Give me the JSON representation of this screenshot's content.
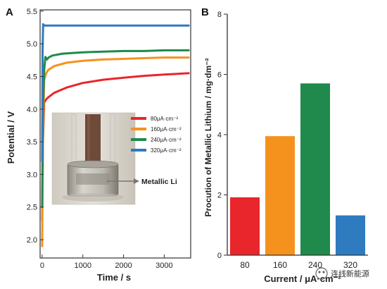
{
  "chart_data": [
    {
      "panel": "A",
      "type": "line",
      "xlabel": "Time / s",
      "ylabel": "Potential / V",
      "xlim": [
        -50,
        3650
      ],
      "ylim": [
        1.72,
        5.52
      ],
      "xticks": [
        0,
        1000,
        2000,
        3000
      ],
      "yticks": [
        2.0,
        2.5,
        3.0,
        3.5,
        4.0,
        4.5,
        5.0,
        5.5
      ],
      "ytick_labels": [
        "2.0",
        "2.5",
        "3.0",
        "3.5",
        "4.0",
        "4.5",
        "5.0",
        "5.5"
      ],
      "legend_position": "right, inside",
      "series": [
        {
          "name": "80μA·cm⁻²",
          "color": "#e8262b",
          "x": [
            0,
            20,
            50,
            100,
            150,
            300,
            600,
            1000,
            1500,
            2000,
            2500,
            3000,
            3600
          ],
          "y": [
            2.3,
            3.5,
            4.1,
            4.15,
            4.18,
            4.25,
            4.33,
            4.4,
            4.45,
            4.48,
            4.51,
            4.53,
            4.55
          ]
        },
        {
          "name": "160μA·cm⁻²",
          "color": "#f5921e",
          "x": [
            0,
            20,
            50,
            100,
            150,
            300,
            600,
            1000,
            1500,
            2000,
            2500,
            3000,
            3600
          ],
          "y": [
            1.9,
            3.5,
            4.45,
            4.55,
            4.6,
            4.66,
            4.71,
            4.74,
            4.76,
            4.77,
            4.78,
            4.79,
            4.79
          ]
        },
        {
          "name": "240μA·cm⁻²",
          "color": "#1f8a4c",
          "x": [
            0,
            20,
            50,
            80,
            120,
            160,
            250,
            500,
            1000,
            1500,
            2000,
            2500,
            3000,
            3600
          ],
          "y": [
            2.5,
            4.0,
            4.6,
            4.8,
            4.76,
            4.79,
            4.82,
            4.85,
            4.87,
            4.88,
            4.89,
            4.89,
            4.9,
            4.9
          ]
        },
        {
          "name": "320μA·cm⁻²",
          "color": "#2e7bc0",
          "x": [
            0,
            10,
            25,
            40,
            60,
            100,
            200,
            500,
            1000,
            2000,
            3000,
            3600
          ],
          "y": [
            3.2,
            4.9,
            5.3,
            5.29,
            5.28,
            5.28,
            5.28,
            5.28,
            5.28,
            5.28,
            5.28,
            5.28
          ]
        }
      ],
      "annotations": [
        {
          "text": "Metallic Li",
          "x_data_hint": "arrow from inset photo"
        }
      ]
    },
    {
      "panel": "B",
      "type": "bar",
      "xlabel": "Current / μA·cm⁻²",
      "ylabel": "Procution of Metallic Lithium / mg·dm⁻²",
      "ylim": [
        0,
        8
      ],
      "yticks": [
        0,
        2,
        4,
        6,
        8
      ],
      "categories": [
        "80",
        "160",
        "240",
        "320"
      ],
      "values": [
        1.92,
        3.95,
        5.7,
        1.32
      ],
      "colors": [
        "#e8262b",
        "#f5921e",
        "#1f8a4c",
        "#2e7bc0"
      ]
    }
  ],
  "watermark": "连线新能源"
}
